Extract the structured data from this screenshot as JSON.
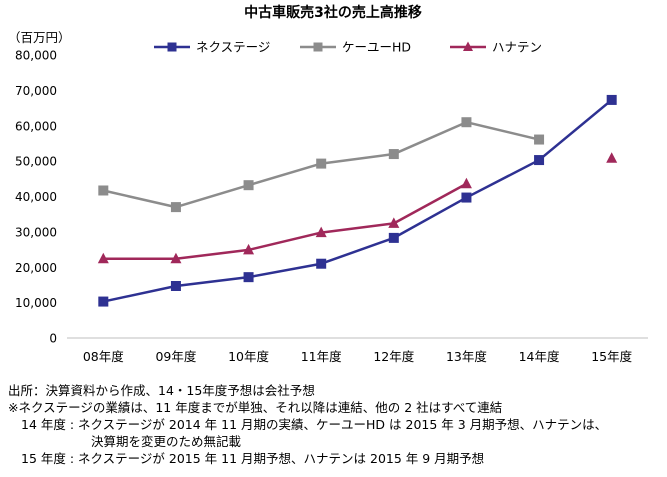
{
  "chart_data": {
    "type": "line",
    "title": "中古車販売3社の売上高推移",
    "unit_label": "（百万円）",
    "categories": [
      "08年度",
      "09年度",
      "10年度",
      "11年度",
      "12年度",
      "13年度",
      "14年度",
      "15年度"
    ],
    "ylim": [
      0,
      80000
    ],
    "yticks": [
      "0",
      "10,000",
      "20,000",
      "30,000",
      "40,000",
      "50,000",
      "60,000",
      "70,000",
      "80,000"
    ],
    "legend_position": "top",
    "series": [
      {
        "name": "ネクステージ",
        "color": "#2e3192",
        "marker": "square",
        "values": [
          10300,
          14700,
          17200,
          21000,
          28300,
          39700,
          50300,
          67300
        ],
        "connected_to": 7
      },
      {
        "name": "ケーユーHD",
        "color": "#8c8c8c",
        "marker": "square",
        "values": [
          41700,
          37000,
          43200,
          49300,
          52000,
          61000,
          56100,
          null
        ],
        "connected_to": 6
      },
      {
        "name": "ハナテン",
        "color": "#a0285a",
        "marker": "triangle",
        "values": [
          22400,
          22400,
          24900,
          29800,
          32400,
          43600,
          null,
          50800
        ],
        "connected_to": 5
      }
    ]
  },
  "notes": {
    "source": "出所：決算資料から作成、14・15年度予想は会社予想",
    "note1": "※ネクステージの業績は、11 年度までが単独、それ以降は連結、他の 2 社はすべて連結",
    "note2a": "14 年度 : ネクステージが 2014 年 11 月期の実績、ケーユーHD は 2015 年 3 月期予想、ハナテンは、",
    "note2b": "決算期を変更のため無記載",
    "note3": "15 年度 : ネクステージが 2015 年 11 月期予想、ハナテンは 2015 年 9 月期予想"
  }
}
